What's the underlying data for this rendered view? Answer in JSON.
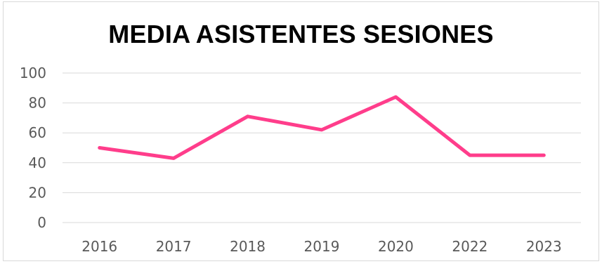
{
  "chart_data": {
    "type": "line",
    "title": "MEDIA ASISTENTES SESIONES",
    "xlabel": "",
    "ylabel": "",
    "categories": [
      "2016",
      "2017",
      "2018",
      "2019",
      "2020",
      "2022",
      "2023"
    ],
    "series": [
      {
        "values": [
          50,
          43,
          71,
          62,
          84,
          45,
          45
        ]
      }
    ],
    "ylim": [
      0,
      100
    ],
    "yticks": [
      0,
      20,
      40,
      60,
      80,
      100
    ],
    "grid": true,
    "legend": "none",
    "line_color": "#ff3d8b",
    "grid_color": "#d9d9d9"
  }
}
